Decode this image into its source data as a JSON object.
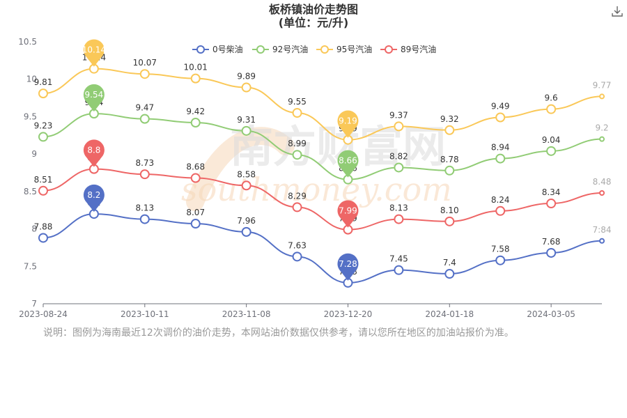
{
  "title": "板桥镇油价走势图",
  "subtitle": "(单位：元/升)",
  "note": "说明：图例为海南最近12次调价的油价走势，本网站油价数据仅供参考，请以您所在地区的加油站报价为准。",
  "watermark": {
    "cn": "南方财富网",
    "en": "southmoney.com"
  },
  "chart_data": {
    "type": "line",
    "x_ticks": [
      "2023-08-24",
      "2023-10-11",
      "2023-11-08",
      "2023-12-20",
      "2024-01-18",
      "2024-03-05"
    ],
    "ylim": [
      7,
      10.5
    ],
    "y_ticks": [
      "7",
      "7.5",
      "8",
      "8.5",
      "9",
      "9.5",
      "10",
      "10.5"
    ],
    "legend_position": "top",
    "series": [
      {
        "name": "0号柴油",
        "color": "#5470c6",
        "values": [
          7.88,
          8.2,
          8.13,
          8.07,
          7.96,
          7.63,
          7.28,
          7.45,
          7.4,
          7.58,
          7.68,
          7.84
        ],
        "max": 8.2,
        "min": 7.28
      },
      {
        "name": "92号汽油",
        "color": "#91cc75",
        "values": [
          9.23,
          9.54,
          9.47,
          9.42,
          9.31,
          8.99,
          8.66,
          8.82,
          8.78,
          8.94,
          9.04,
          9.2
        ],
        "max": 9.54,
        "min": 8.66
      },
      {
        "name": "95号汽油",
        "color": "#fac858",
        "values": [
          9.81,
          10.14,
          10.07,
          10.01,
          9.89,
          9.55,
          9.19,
          9.37,
          9.32,
          9.49,
          9.6,
          9.77
        ],
        "max": 10.14,
        "min": 9.19
      },
      {
        "name": "89号汽油",
        "color": "#ee6666",
        "values": [
          8.51,
          8.8,
          8.73,
          8.68,
          8.58,
          8.29,
          7.99,
          8.13,
          8.1,
          8.24,
          8.34,
          8.48
        ],
        "max": 8.8,
        "min": 7.99
      }
    ],
    "point_labels": {
      "0号柴油": [
        "7.88",
        "8.2",
        "8.13",
        "8.07",
        "7.96",
        "7.63",
        "7.28",
        "7.45",
        "7.4",
        "7.58",
        "7.68",
        "7:84"
      ],
      "92号汽油": [
        "9.23",
        "9.54",
        "9.47",
        "9.42",
        "9.31",
        "8.99",
        "8.66",
        "8.82",
        "8.78",
        "8.94",
        "9.04",
        "9.2"
      ],
      "95号汽油": [
        "9.81",
        "10.14",
        "10.07",
        "10.01",
        "9.89",
        "9.55",
        "9.19",
        "9.37",
        "9.32",
        "9.49",
        "9.6",
        "9.77"
      ],
      "89号汽油": [
        "8.51",
        "8.8",
        "8.73",
        "8.68",
        "8.58",
        "8.29",
        "7.99",
        "8.13",
        "8.10",
        "8.24",
        "8.34",
        "8.48"
      ]
    }
  }
}
